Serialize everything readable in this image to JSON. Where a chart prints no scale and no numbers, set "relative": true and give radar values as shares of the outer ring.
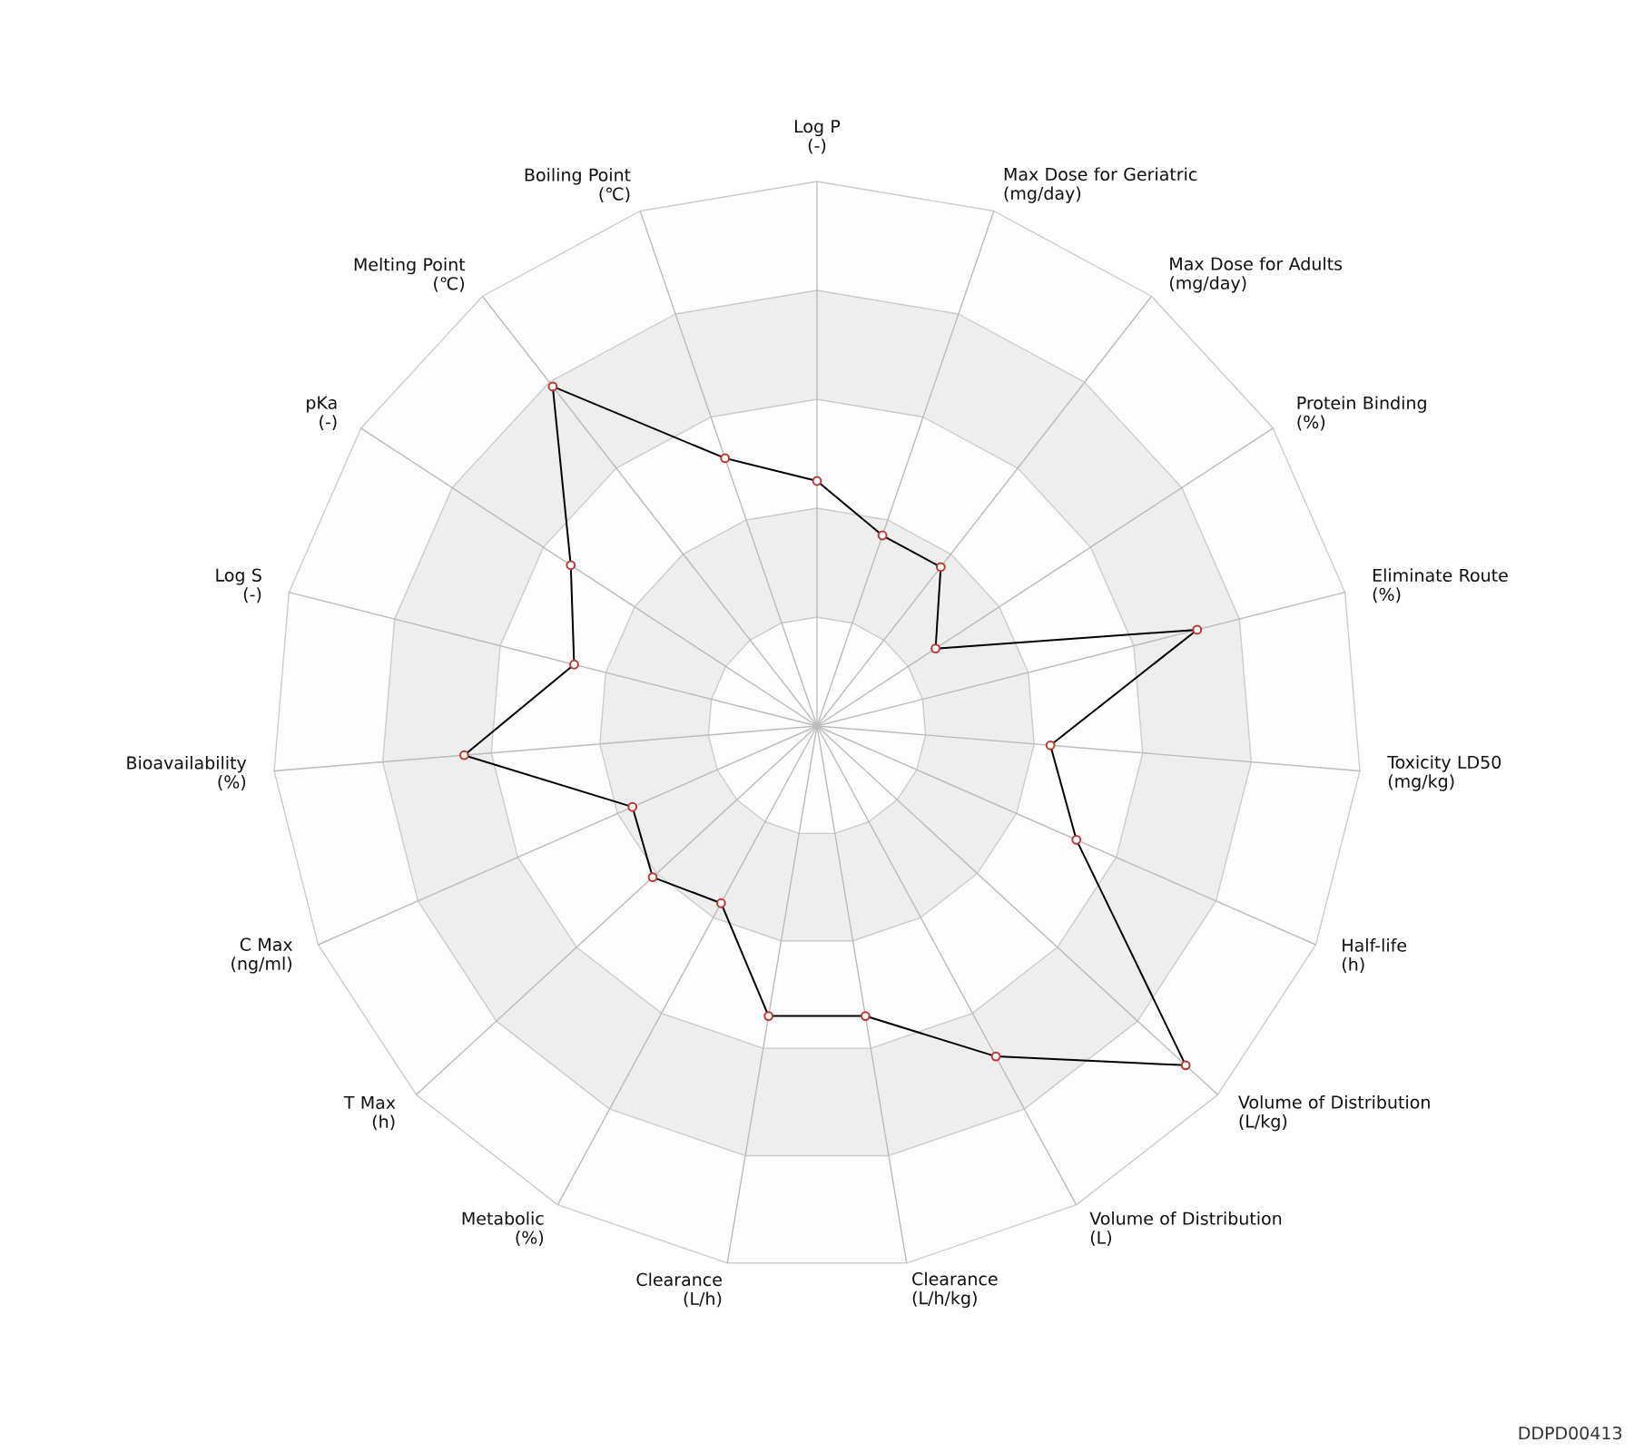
{
  "chart_data": {
    "type": "radar",
    "relative": true,
    "grid": true,
    "marker": "circle",
    "categories": [
      "Log P\n(-)",
      "Max Dose for Geriatric\n(mg/day)",
      "Max Dose for Adults\n(mg/day)",
      "Protein Binding\n(%)",
      "Eliminate Route\n(%)",
      "Toxicity LD50\n(mg/kg)",
      "Half-life\n(h)",
      "Volume of Distribution\n(L/kg)",
      "Volume of Distribution\n(L)",
      "Clearance\n(L/h/kg)",
      "Clearance\n(L/h)",
      "Metabolic\n(%)",
      "T Max\n(h)",
      "C Max\n(ng/ml)",
      "Bioavailability\n(%)",
      "Log S\n(-)",
      "pKa\n(-)",
      "Melting Point\n(℃)",
      "Boiling Point\n(℃)"
    ],
    "series": [
      {
        "color": "#000000",
        "colors": [
          "#c23531",
          "#c23531",
          "#c23531",
          "#c23531",
          "#c23531",
          "#c23531",
          "#c23531",
          "#c23531",
          "#c23531",
          "#c23531",
          "#c23531",
          "#c23531",
          "#c23531",
          "#c23531",
          "#c23531",
          "#c23531",
          "#c23531",
          "#c23531",
          "#c23531"
        ],
        "values": [
          0.45,
          0.37,
          0.37,
          0.26,
          0.72,
          0.43,
          0.52,
          0.92,
          0.69,
          0.54,
          0.54,
          0.37,
          0.41,
          0.37,
          0.65,
          0.46,
          0.54,
          0.79,
          0.52
        ]
      }
    ],
    "annotations": [
      "DDPD00413"
    ]
  }
}
